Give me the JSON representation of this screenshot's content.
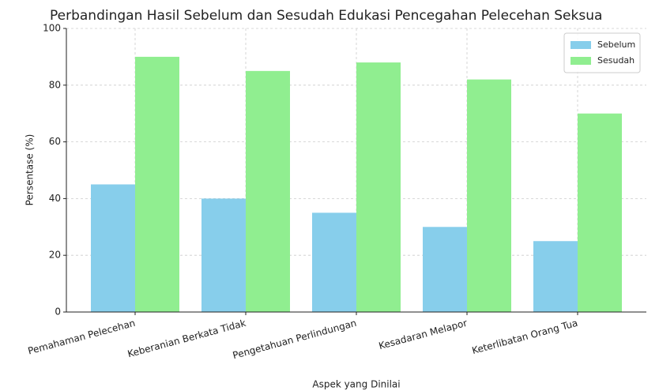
{
  "chart_data": {
    "type": "bar",
    "title": "Perbandingan Hasil Sebelum dan Sesudah Edukasi Pencegahan Pelecehan Seksua",
    "x_label": "Aspek yang Dinilai",
    "y_label": "Persentase (%)",
    "categories": [
      "Pemahaman Pelecehan",
      "Keberanian Berkata Tidak",
      "Pengetahuan Perlindungan",
      "Kesadaran Melapor",
      "Keterlibatan Orang Tua"
    ],
    "series": [
      {
        "name": "Sebelum",
        "color": "#87ceeb",
        "values": [
          45,
          40,
          35,
          30,
          25
        ]
      },
      {
        "name": "Sesudah",
        "color": "#90ee90",
        "values": [
          90,
          85,
          88,
          82,
          70
        ]
      }
    ],
    "ylim": [
      0,
      100
    ],
    "yticks": [
      0,
      20,
      40,
      60,
      80,
      100
    ],
    "grid": true,
    "legend": "upper right"
  }
}
